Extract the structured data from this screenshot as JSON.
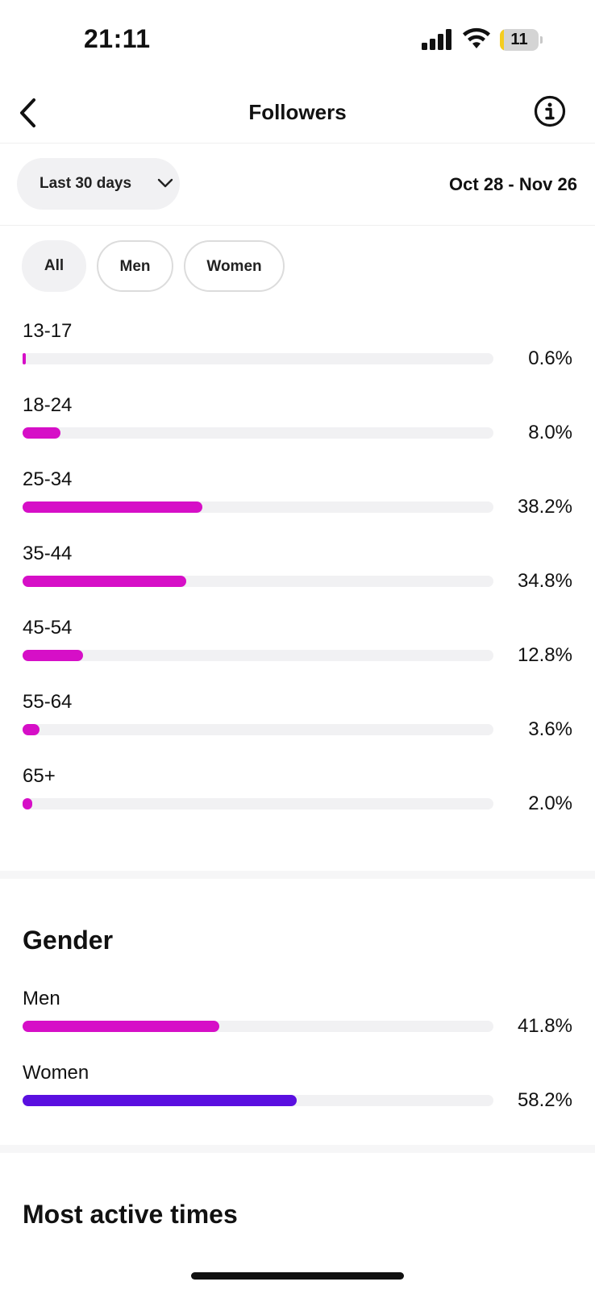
{
  "status_bar": {
    "time": "21:11",
    "battery_level": "11",
    "battery_fraction": 0.11,
    "icons": [
      "signal-icon",
      "wifi-icon",
      "battery-icon"
    ]
  },
  "nav": {
    "title": "Followers",
    "back_icon": "chevron-left-icon",
    "info_icon": "info-circle-icon"
  },
  "filters": {
    "range_label": "Last 30 days",
    "date_range": "Oct 28 - Nov 26",
    "chips": [
      "All",
      "Men",
      "Women"
    ],
    "selected_chip": "All"
  },
  "age": {
    "bar_color": "#d60fc7",
    "rows": [
      {
        "label": "13-17",
        "value": "0.6%",
        "fraction": 0.006
      },
      {
        "label": "18-24",
        "value": "8.0%",
        "fraction": 0.08
      },
      {
        "label": "25-34",
        "value": "38.2%",
        "fraction": 0.382
      },
      {
        "label": "35-44",
        "value": "34.8%",
        "fraction": 0.348
      },
      {
        "label": "45-54",
        "value": "12.8%",
        "fraction": 0.128
      },
      {
        "label": "55-64",
        "value": "3.6%",
        "fraction": 0.036
      },
      {
        "label": "65+",
        "value": "2.0%",
        "fraction": 0.02
      }
    ]
  },
  "gender": {
    "title": "Gender",
    "rows": [
      {
        "label": "Men",
        "value": "41.8%",
        "fraction": 0.418,
        "color": "#d60fc7"
      },
      {
        "label": "Women",
        "value": "58.2%",
        "fraction": 0.582,
        "color": "#5a0fe0"
      }
    ]
  },
  "active_times": {
    "title": "Most active times"
  },
  "colors": {
    "track": "#f1f1f3",
    "chip_selected_bg": "#f1f1f3"
  }
}
